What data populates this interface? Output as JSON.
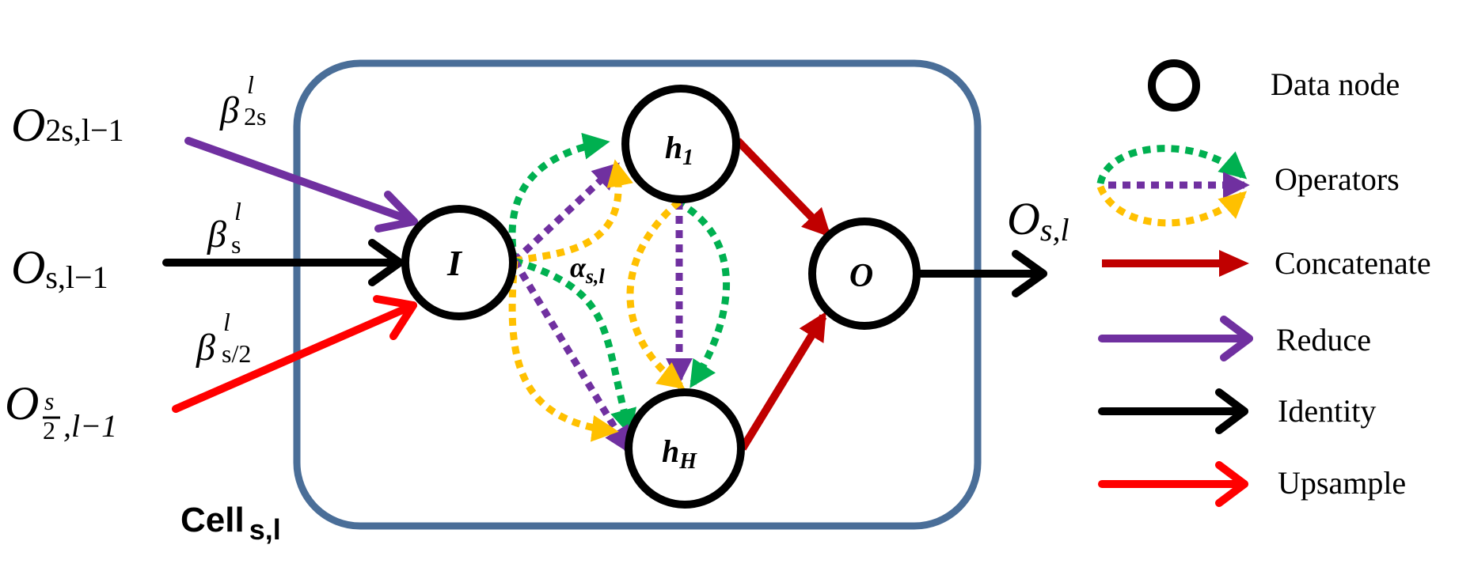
{
  "colors": {
    "cell_border": "#4A6E98",
    "concatenate": "#C00000",
    "reduce": "#7030A0",
    "identity": "#000000",
    "upsample": "#FF0000",
    "op_green": "#00B050",
    "op_purple": "#7030A0",
    "op_yellow": "#FFC000"
  },
  "inputs": {
    "o_2s": {
      "base": "O",
      "sub": "2s,l−1"
    },
    "o_s": {
      "base": "O",
      "sub": "s,l−1"
    },
    "o_half": {
      "base": "O",
      "frac_num": "s",
      "frac_den": "2",
      "sub_rest": ",l−1"
    }
  },
  "betas": {
    "b_2s": {
      "base": "β",
      "sup": "l",
      "sub": "2s"
    },
    "b_s": {
      "base": "β",
      "sup": "l",
      "sub": "s"
    },
    "b_half": {
      "base": "β",
      "sup": "l",
      "sub": "s/2"
    }
  },
  "nodes": {
    "input": {
      "label": "I"
    },
    "h1": {
      "base": "h",
      "sub": "1"
    },
    "hH": {
      "base": "h",
      "sub": "H"
    },
    "output": {
      "label": "O"
    }
  },
  "alpha": {
    "base": "α",
    "sub": "s,l"
  },
  "output_label": {
    "base": "O",
    "sub": "s,l"
  },
  "cell_label": {
    "base": "Cell",
    "sub": "s,l"
  },
  "legend": {
    "data_node": "Data node",
    "operators": "Operators",
    "concatenate": "Concatenate",
    "reduce": "Reduce",
    "identity": "Identity",
    "upsample": "Upsample"
  }
}
